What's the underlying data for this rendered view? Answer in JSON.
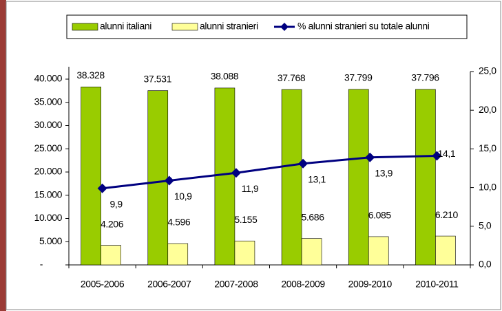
{
  "chart_data": {
    "type": "bar",
    "categories": [
      "2005-2006",
      "2006-2007",
      "2007-2008",
      "2008-2009",
      "2009-2010",
      "2010-2011"
    ],
    "series": [
      {
        "name": "alunni italiani",
        "color": "#99cc00",
        "values": [
          38328,
          37531,
          38088,
          37768,
          37799,
          37796
        ],
        "value_labels": [
          "38.328",
          "37.531",
          "38.088",
          "37.768",
          "37.799",
          "37.796"
        ]
      },
      {
        "name": "alunni stranieri",
        "color": "#ffff99",
        "values": [
          4206,
          4596,
          5155,
          5686,
          6085,
          6210
        ],
        "value_labels": [
          "4.206",
          "4.596",
          "5.155",
          "5.686",
          "6.085",
          "6.210"
        ]
      },
      {
        "name": "% alunni stranieri su totale alunni",
        "color": "#000080",
        "axis": "y2",
        "type": "line",
        "values": [
          9.9,
          10.9,
          11.9,
          13.1,
          13.9,
          14.1
        ],
        "value_labels": [
          "9,9",
          "10,9",
          "11,9",
          "13,1",
          "13,9",
          "14,1"
        ]
      }
    ],
    "ylim": [
      0,
      40000
    ],
    "yticks": [
      {
        "value": 0,
        "label": "-"
      },
      {
        "value": 5000,
        "label": "5.000"
      },
      {
        "value": 10000,
        "label": "10.000"
      },
      {
        "value": 15000,
        "label": "15.000"
      },
      {
        "value": 20000,
        "label": "20.000"
      },
      {
        "value": 25000,
        "label": "25.000"
      },
      {
        "value": 30000,
        "label": "30.000"
      },
      {
        "value": 35000,
        "label": "35.000"
      },
      {
        "value": 40000,
        "label": "40.000"
      }
    ],
    "y2lim": [
      0,
      25
    ],
    "y2ticks": [
      {
        "value": 0,
        "label": "0,0"
      },
      {
        "value": 5,
        "label": "5,0"
      },
      {
        "value": 10,
        "label": "10,0"
      },
      {
        "value": 15,
        "label": "15,0"
      },
      {
        "value": 20,
        "label": "20,0"
      },
      {
        "value": 25,
        "label": "25,0"
      }
    ],
    "grid": false
  }
}
